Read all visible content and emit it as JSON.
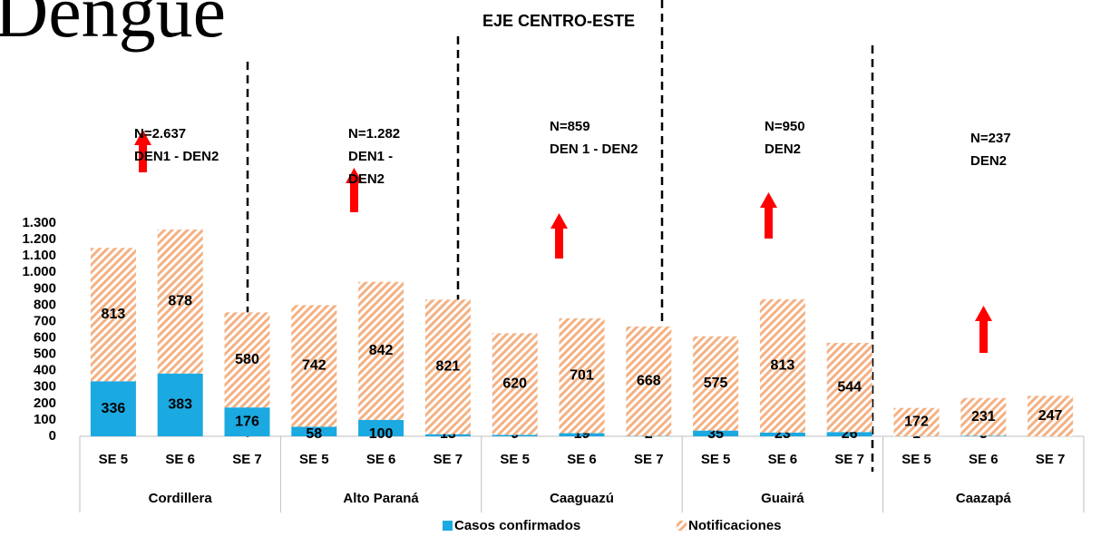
{
  "chart_data": {
    "type": "bar",
    "stacked": true,
    "title": "Dengue",
    "subtitle": "EJE CENTRO-ESTE",
    "categories": [
      "SE 5",
      "SE 6",
      "SE 7",
      "SE 5",
      "SE 6",
      "SE 7",
      "SE 5",
      "SE 6",
      "SE 7",
      "SE 5",
      "SE 6",
      "SE 7",
      "SE 5",
      "SE 6",
      "SE 7"
    ],
    "groups": [
      "Cordillera",
      "Alto Paraná",
      "Caaguazú",
      "Guairá",
      "Caazapá"
    ],
    "annotations": [
      [
        "N=2.637",
        "DEN1 - DEN2"
      ],
      [
        "N=1.282",
        "DEN1 -",
        "DEN2"
      ],
      [
        "N=859",
        "DEN 1 - DEN2"
      ],
      [
        "N=950",
        "DEN2"
      ],
      [
        "N=237",
        "DEN2"
      ]
    ],
    "series": [
      {
        "name": "Casos confirmados",
        "color": "#1ba9e1",
        "values": [
          336,
          383,
          176,
          58,
          100,
          13,
          9,
          19,
          2,
          35,
          23,
          26,
          1,
          3,
          null
        ]
      },
      {
        "name": "Notificaciones",
        "color": "#f4b183",
        "pattern": "hatch",
        "values": [
          813,
          878,
          580,
          742,
          842,
          821,
          620,
          701,
          668,
          575,
          813,
          544,
          172,
          231,
          247
        ]
      }
    ],
    "ylim": [
      0,
      1300
    ],
    "yticks": [
      0,
      100,
      200,
      300,
      400,
      500,
      600,
      700,
      800,
      900,
      {
        "value": 1000,
        "label": "1.000"
      },
      {
        "value": 1100,
        "label": "1.100"
      },
      {
        "value": 1200,
        "label": "1.200"
      },
      {
        "value": 1300,
        "label": "1.300"
      }
    ],
    "legend": "bottom"
  }
}
